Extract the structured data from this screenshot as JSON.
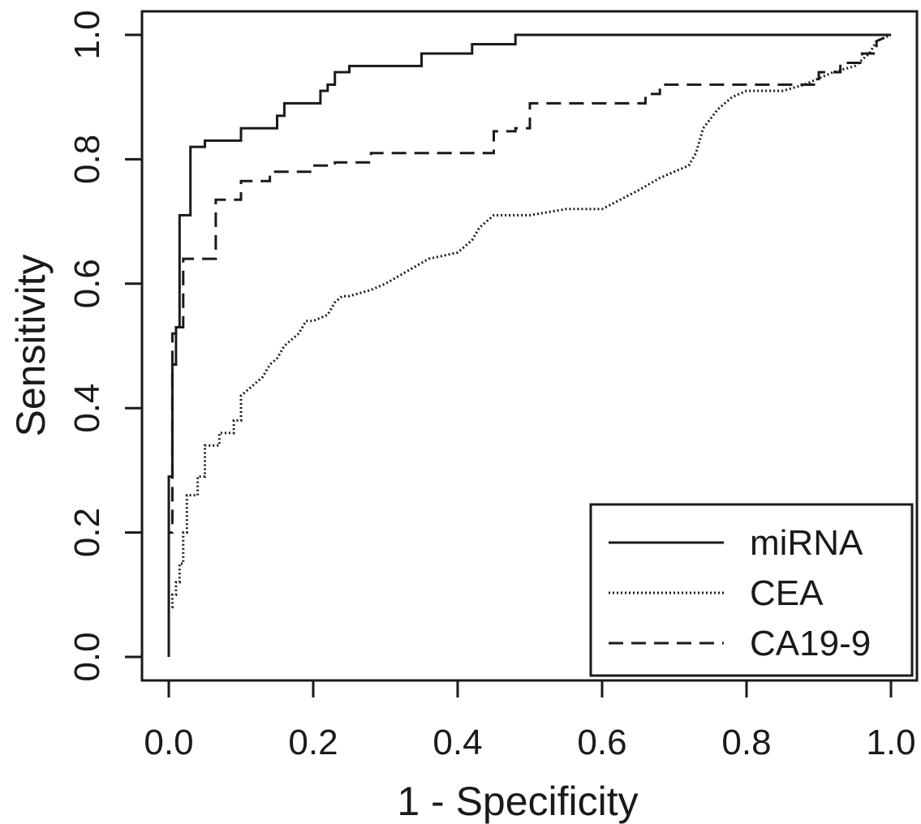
{
  "chart_data": {
    "type": "line",
    "title": "",
    "xlabel": "1 - Specificity",
    "ylabel": "Sensitivity",
    "xlim": [
      0,
      1
    ],
    "ylim": [
      0,
      1
    ],
    "xticks": [
      "0.0",
      "0.2",
      "0.4",
      "0.6",
      "0.8",
      "1.0"
    ],
    "yticks": [
      "0.0",
      "0.2",
      "0.4",
      "0.6",
      "0.8",
      "1.0"
    ],
    "grid": false,
    "legend_position": "bottom-right",
    "series": [
      {
        "name": "miRNA",
        "line_style": "solid",
        "x": [
          0,
          0,
          0.005,
          0.005,
          0.01,
          0.01,
          0.015,
          0.015,
          0.02,
          0.02,
          0.03,
          0.03,
          0.05,
          0.05,
          0.1,
          0.1,
          0.15,
          0.15,
          0.16,
          0.16,
          0.21,
          0.21,
          0.22,
          0.22,
          0.23,
          0.23,
          0.25,
          0.25,
          0.35,
          0.35,
          0.42,
          0.42,
          0.48,
          0.48,
          1.0
        ],
        "y": [
          0,
          0.29,
          0.29,
          0.47,
          0.47,
          0.53,
          0.53,
          0.71,
          0.71,
          0.71,
          0.71,
          0.82,
          0.82,
          0.83,
          0.83,
          0.85,
          0.85,
          0.87,
          0.87,
          0.89,
          0.89,
          0.91,
          0.91,
          0.92,
          0.92,
          0.94,
          0.94,
          0.95,
          0.95,
          0.97,
          0.97,
          0.985,
          0.985,
          1.0,
          1.0
        ]
      },
      {
        "name": "CEA",
        "line_style": "dotted",
        "x": [
          0,
          0,
          0.005,
          0.005,
          0.01,
          0.01,
          0.015,
          0.015,
          0.02,
          0.02,
          0.025,
          0.025,
          0.04,
          0.04,
          0.05,
          0.05,
          0.07,
          0.07,
          0.09,
          0.09,
          0.1,
          0.1,
          0.12,
          0.13,
          0.14,
          0.15,
          0.16,
          0.17,
          0.18,
          0.19,
          0.2,
          0.22,
          0.23,
          0.24,
          0.25,
          0.28,
          0.3,
          0.33,
          0.36,
          0.4,
          0.42,
          0.43,
          0.44,
          0.45,
          0.46,
          0.5,
          0.55,
          0.6,
          0.65,
          0.68,
          0.72,
          0.73,
          0.74,
          0.76,
          0.78,
          0.8,
          0.85,
          0.88,
          0.9,
          0.92,
          0.95,
          0.97,
          0.98,
          1.0
        ],
        "y": [
          0,
          0.08,
          0.08,
          0.1,
          0.1,
          0.12,
          0.12,
          0.15,
          0.15,
          0.2,
          0.2,
          0.26,
          0.26,
          0.29,
          0.29,
          0.34,
          0.34,
          0.36,
          0.36,
          0.38,
          0.38,
          0.42,
          0.44,
          0.45,
          0.47,
          0.48,
          0.5,
          0.51,
          0.52,
          0.54,
          0.54,
          0.55,
          0.57,
          0.58,
          0.58,
          0.59,
          0.6,
          0.62,
          0.64,
          0.65,
          0.67,
          0.69,
          0.7,
          0.71,
          0.71,
          0.71,
          0.72,
          0.72,
          0.75,
          0.77,
          0.79,
          0.81,
          0.85,
          0.88,
          0.9,
          0.91,
          0.91,
          0.92,
          0.93,
          0.94,
          0.95,
          0.97,
          0.99,
          1.0
        ]
      },
      {
        "name": "CA19-9",
        "line_style": "dashed",
        "x": [
          0,
          0,
          0.005,
          0.005,
          0.01,
          0.01,
          0.02,
          0.02,
          0.035,
          0.035,
          0.065,
          0.065,
          0.1,
          0.1,
          0.14,
          0.14,
          0.2,
          0.2,
          0.23,
          0.23,
          0.28,
          0.28,
          0.45,
          0.45,
          0.48,
          0.48,
          0.5,
          0.5,
          0.66,
          0.66,
          0.68,
          0.68,
          0.9,
          0.9,
          0.93,
          0.93,
          0.96,
          0.96,
          0.98,
          0.98,
          1.0
        ],
        "y": [
          0,
          0.2,
          0.2,
          0.52,
          0.52,
          0.53,
          0.53,
          0.64,
          0.64,
          0.64,
          0.64,
          0.735,
          0.735,
          0.765,
          0.765,
          0.78,
          0.78,
          0.79,
          0.79,
          0.795,
          0.795,
          0.81,
          0.81,
          0.845,
          0.845,
          0.85,
          0.85,
          0.89,
          0.89,
          0.905,
          0.905,
          0.92,
          0.92,
          0.94,
          0.94,
          0.955,
          0.955,
          0.97,
          0.97,
          0.99,
          1.0
        ]
      }
    ]
  }
}
